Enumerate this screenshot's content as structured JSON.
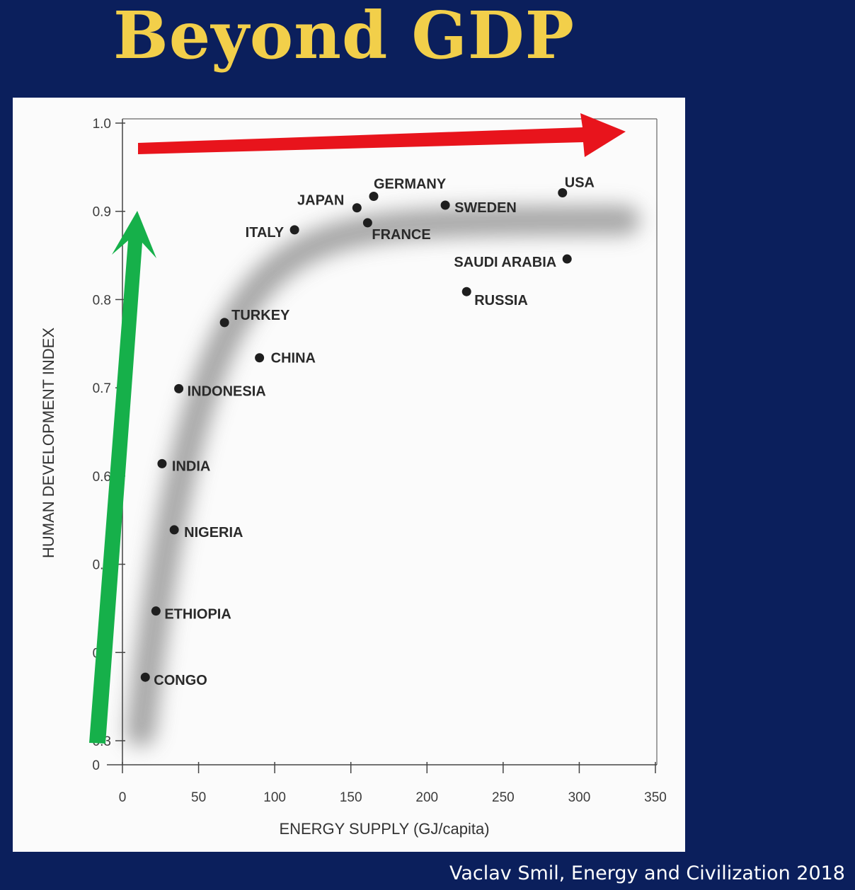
{
  "slide": {
    "title": "Beyond GDP",
    "credit": "Vaclav Smil, Energy and Civilization 2018"
  },
  "colors": {
    "background": "#0b1f5c",
    "title": "#f2cf4a",
    "arrow_x": "#e8141c",
    "arrow_y": "#16b04a"
  },
  "chart_data": {
    "type": "scatter",
    "xlabel": "ENERGY SUPPLY (GJ/capita)",
    "ylabel": "HUMAN DEVELOPMENT INDEX",
    "xlim": [
      0,
      350
    ],
    "ylim": [
      0.3,
      1.0
    ],
    "x_ticks": [
      "0",
      "50",
      "100",
      "150",
      "200",
      "250",
      "300",
      "350"
    ],
    "y_ticks": [
      "0.3",
      "0.4",
      "0.5",
      "0.6",
      "0.7",
      "0.8",
      "0.9",
      "1.0"
    ],
    "y_zero_label": "0",
    "grid": false,
    "points": [
      {
        "label": "CONGO",
        "x": 15,
        "y": 0.372
      },
      {
        "label": "ETHIOPIA",
        "x": 22,
        "y": 0.447
      },
      {
        "label": "NIGERIA",
        "x": 34,
        "y": 0.539
      },
      {
        "label": "INDIA",
        "x": 26,
        "y": 0.614
      },
      {
        "label": "INDONESIA",
        "x": 37,
        "y": 0.699
      },
      {
        "label": "TURKEY",
        "x": 67,
        "y": 0.774
      },
      {
        "label": "CHINA",
        "x": 90,
        "y": 0.734
      },
      {
        "label": "ITALY",
        "x": 113,
        "y": 0.879
      },
      {
        "label": "JAPAN",
        "x": 154,
        "y": 0.904
      },
      {
        "label": "GERMANY",
        "x": 165,
        "y": 0.917
      },
      {
        "label": "FRANCE",
        "x": 161,
        "y": 0.887
      },
      {
        "label": "SWEDEN",
        "x": 212,
        "y": 0.907
      },
      {
        "label": "RUSSIA",
        "x": 226,
        "y": 0.809
      },
      {
        "label": "SAUDI ARABIA",
        "x": 292,
        "y": 0.846
      },
      {
        "label": "USA",
        "x": 289,
        "y": 0.921
      }
    ]
  }
}
